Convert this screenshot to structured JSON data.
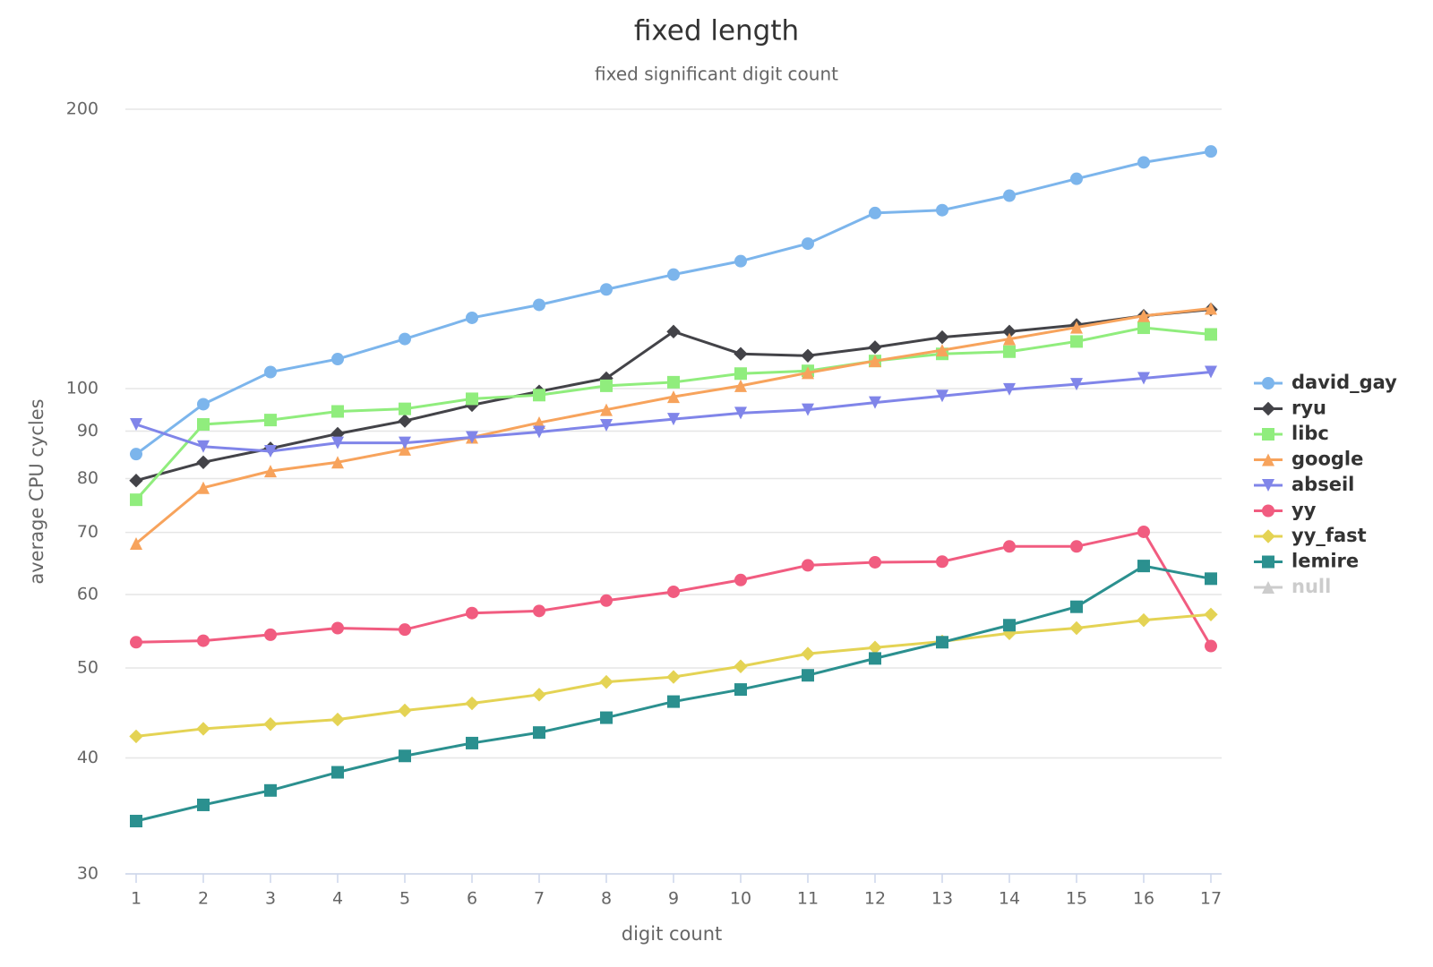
{
  "chart_data": {
    "type": "line",
    "title": "fixed length",
    "subtitle": "fixed significant digit count",
    "x_label": "digit count",
    "y_label": "average CPU cycles",
    "x": [
      1,
      2,
      3,
      4,
      5,
      6,
      7,
      8,
      9,
      10,
      11,
      12,
      13,
      14,
      15,
      16,
      17
    ],
    "xlim": [
      1,
      17
    ],
    "xticks": [
      1,
      2,
      3,
      4,
      5,
      6,
      7,
      8,
      9,
      10,
      11,
      12,
      13,
      14,
      15,
      16,
      17
    ],
    "ylim": [
      30,
      200
    ],
    "yticks": [
      30,
      40,
      50,
      60,
      70,
      80,
      90,
      100,
      200
    ],
    "log_y": true,
    "grid": true,
    "legend": "right",
    "series": [
      {
        "name": "david_gay",
        "color": "#7cb5ec",
        "marker": "circle",
        "values": [
          85.0,
          96.2,
          104.2,
          107.6,
          113.1,
          119.2,
          123.1,
          127.9,
          132.7,
          137.2,
          143.3,
          154.6,
          155.7,
          161.4,
          168.3,
          175.3,
          180.1
        ]
      },
      {
        "name": "ryu",
        "color": "#434348",
        "marker": "diamond",
        "values": [
          79.6,
          83.3,
          86.2,
          89.4,
          92.3,
          96.0,
          99.3,
          102.6,
          115.2,
          109.0,
          108.5,
          110.8,
          113.6,
          115.2,
          117.1,
          119.8,
          121.7
        ]
      },
      {
        "name": "libc",
        "color": "#90ed7d",
        "marker": "square",
        "values": [
          75.9,
          91.5,
          92.5,
          94.5,
          95.1,
          97.5,
          98.4,
          100.7,
          101.6,
          103.8,
          104.5,
          107.1,
          109.0,
          109.6,
          112.4,
          116.3,
          114.4
        ]
      },
      {
        "name": "google",
        "color": "#f7a35c",
        "marker": "triangle",
        "values": [
          68.1,
          78.2,
          81.5,
          83.3,
          86.0,
          88.6,
          91.9,
          94.9,
          98.0,
          100.7,
          104.0,
          107.1,
          110.0,
          113.1,
          116.4,
          119.8,
          122.0
        ]
      },
      {
        "name": "abseil",
        "color": "#8085e9",
        "marker": "triangle-down",
        "values": [
          91.5,
          86.6,
          85.6,
          87.4,
          87.4,
          88.6,
          89.8,
          91.3,
          92.7,
          94.1,
          94.9,
          96.6,
          98.2,
          99.8,
          101.1,
          102.6,
          104.2
        ]
      },
      {
        "name": "yy",
        "color": "#f15c80",
        "marker": "circle",
        "values": [
          53.3,
          53.5,
          54.3,
          55.2,
          55.0,
          57.3,
          57.6,
          59.1,
          60.4,
          62.2,
          64.5,
          65.0,
          65.1,
          67.6,
          67.6,
          70.1,
          52.8
        ]
      },
      {
        "name": "yy_fast",
        "color": "#e4d354",
        "marker": "diamond",
        "values": [
          42.2,
          43.0,
          43.5,
          44.0,
          45.0,
          45.8,
          46.8,
          48.3,
          48.9,
          50.2,
          51.8,
          52.6,
          53.4,
          54.5,
          55.2,
          56.3,
          57.1
        ]
      },
      {
        "name": "lemire",
        "color": "#2b908f",
        "marker": "square",
        "values": [
          34.2,
          35.6,
          36.9,
          38.6,
          40.2,
          41.5,
          42.6,
          44.2,
          46.0,
          47.4,
          49.1,
          51.2,
          53.3,
          55.6,
          58.2,
          64.4,
          62.4
        ]
      },
      {
        "name": "null",
        "color": "#cccccc",
        "marker": "triangle",
        "visible": false,
        "values": [
          null,
          null,
          null,
          null,
          null,
          null,
          null,
          null,
          null,
          null,
          null,
          null,
          null,
          null,
          null,
          null,
          null
        ]
      }
    ]
  }
}
